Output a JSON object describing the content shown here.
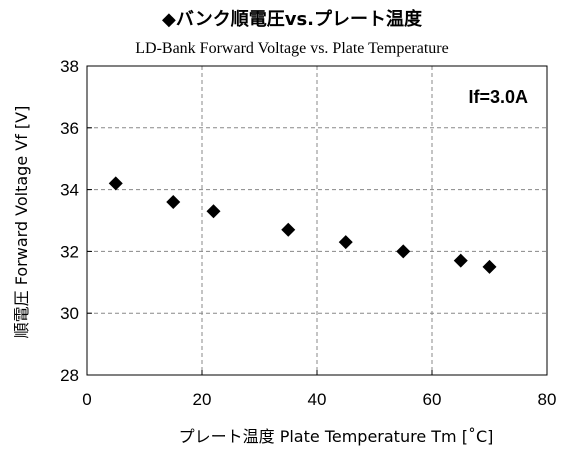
{
  "chart_data": {
    "type": "scatter",
    "title": "◆バンク順電圧vs.プレート温度",
    "subtitle": "LD-Bank  Forward  Voltage  vs. Plate  Temperature",
    "xlabel": "プレート温度  Plate Temperature  Tm [˚C]",
    "ylabel": "順電圧 Forward Voltage Vf [V]",
    "annotation": "If=3.0A",
    "xlim": [
      0,
      80
    ],
    "ylim": [
      28,
      38
    ],
    "xticks": [
      0,
      20,
      40,
      60,
      80
    ],
    "yticks": [
      28,
      30,
      32,
      34,
      36,
      38
    ],
    "grid": true,
    "marker": "diamond",
    "marker_color": "#000000",
    "series": [
      {
        "x": [
          5,
          15,
          22,
          35,
          45,
          55,
          65,
          70
        ],
        "y": [
          34.2,
          33.6,
          33.3,
          32.7,
          32.3,
          32.0,
          31.7,
          31.5
        ]
      }
    ]
  }
}
